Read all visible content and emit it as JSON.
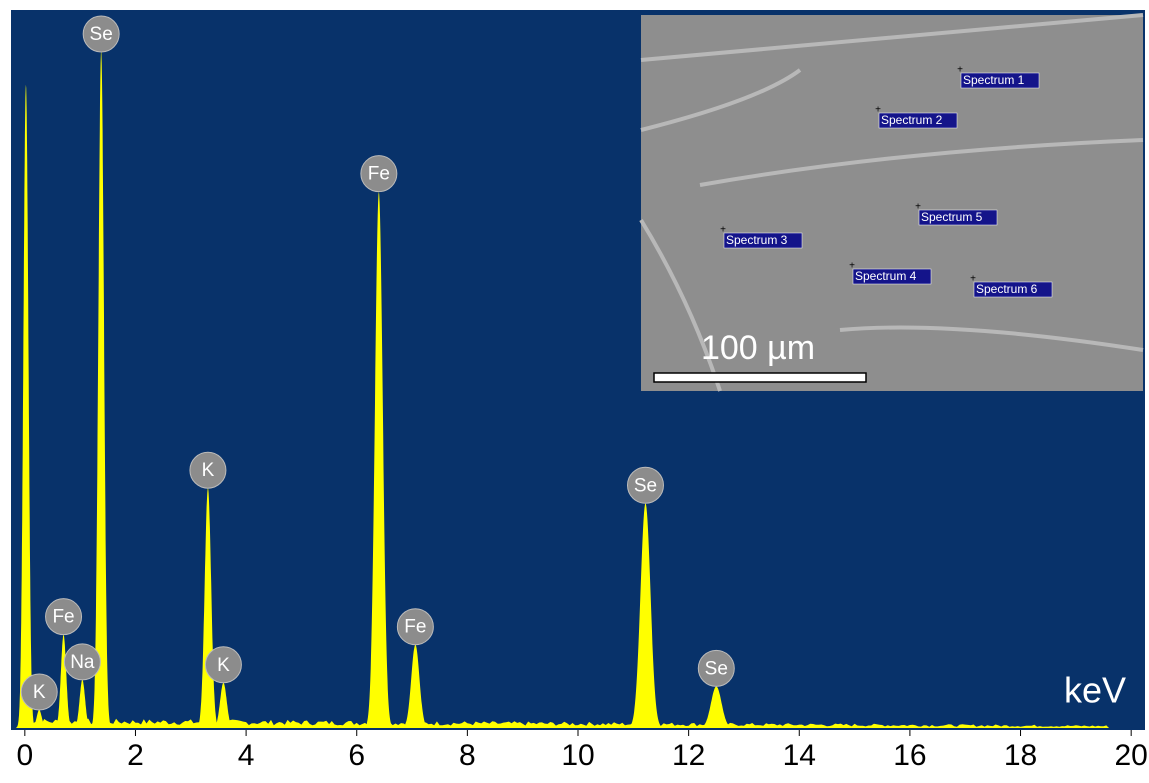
{
  "chart_data": {
    "type": "spectrum",
    "x_label": "keV",
    "x": [
      0.02,
      0.26,
      0.7,
      1.04,
      1.38,
      3.31,
      3.59,
      6.4,
      7.06,
      11.22,
      12.5
    ],
    "values": [
      89.6,
      2.5,
      13,
      6.7,
      94.4,
      33.4,
      6.3,
      74.7,
      11.6,
      31.3,
      5.8
    ],
    "labels": [
      null,
      "K",
      "Fe",
      "Na",
      "Se",
      "K",
      "K",
      "Fe",
      "Fe",
      "Se",
      "Se"
    ],
    "color": "#ffff00",
    "background": "#08326a",
    "xlim": [
      -0.25,
      20.25
    ],
    "xticks": [
      0,
      2,
      4,
      6,
      8,
      10,
      12,
      14,
      16,
      18,
      20
    ],
    "ylim": [
      0,
      100
    ]
  },
  "inset": {
    "scale_bar": "100 µm",
    "spots": [
      "Spectrum 1",
      "Spectrum 2",
      "Spectrum 3",
      "Spectrum 4",
      "Spectrum 5",
      "Spectrum 6"
    ]
  }
}
